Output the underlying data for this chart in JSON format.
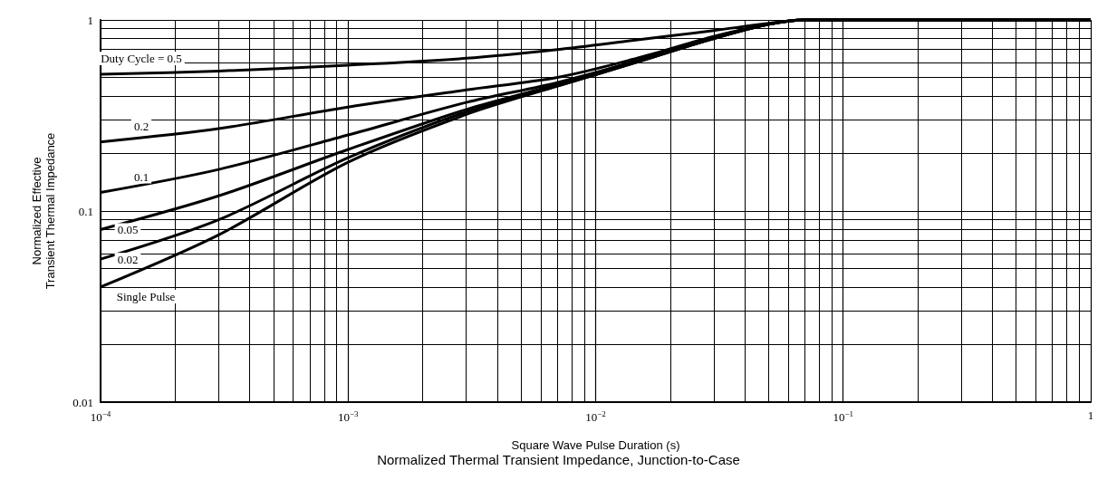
{
  "chart_data": {
    "type": "line",
    "title": "Normalized Thermal Transient Impedance, Junction-to-Case",
    "xlabel": "Square Wave Pulse Duration (s)",
    "ylabel": "Normalized Effective Transient Thermal Impedance",
    "x": [
      0.0001,
      0.0003,
      0.001,
      0.003,
      0.007,
      0.014,
      0.03,
      0.05,
      0.07,
      0.2,
      1
    ],
    "series": [
      {
        "name": "Duty Cycle = 0.5",
        "color": "#000000",
        "values": [
          0.52,
          0.54,
          0.58,
          0.63,
          0.7,
          0.78,
          0.88,
          0.96,
          1,
          1,
          1
        ]
      },
      {
        "name": "0.2",
        "color": "#000000",
        "values": [
          0.23,
          0.27,
          0.35,
          0.43,
          0.5,
          0.62,
          0.82,
          0.95,
          1,
          1,
          1
        ]
      },
      {
        "name": "0.1",
        "color": "#000000",
        "values": [
          0.125,
          0.165,
          0.25,
          0.37,
          0.47,
          0.6,
          0.81,
          0.95,
          1,
          1,
          1
        ]
      },
      {
        "name": "0.05",
        "color": "#000000",
        "values": [
          0.08,
          0.12,
          0.21,
          0.34,
          0.46,
          0.6,
          0.8,
          0.95,
          1,
          1,
          1
        ]
      },
      {
        "name": "0.02",
        "color": "#000000",
        "values": [
          0.056,
          0.09,
          0.19,
          0.33,
          0.45,
          0.59,
          0.8,
          0.95,
          1,
          1,
          1
        ]
      },
      {
        "name": "Single Pulse",
        "color": "#000000",
        "values": [
          0.04,
          0.075,
          0.18,
          0.32,
          0.45,
          0.59,
          0.8,
          0.95,
          1,
          1,
          1
        ]
      }
    ],
    "log": "xy",
    "xlim": [
      0.0001,
      1
    ],
    "ylim": [
      0.01,
      1
    ],
    "xticks": [
      {
        "value": 0.0001,
        "label": "10$^{−4}$"
      },
      {
        "value": 0.001,
        "label": "10$^{−3}$"
      },
      {
        "value": 0.01,
        "label": "10$^{−2}$"
      },
      {
        "value": 0.1,
        "label": "10$^{−1}$"
      },
      1
    ],
    "yticks": [
      0.01,
      0.1,
      1
    ],
    "grid": true,
    "legend": false,
    "marker": "none",
    "line_style": "solid"
  }
}
